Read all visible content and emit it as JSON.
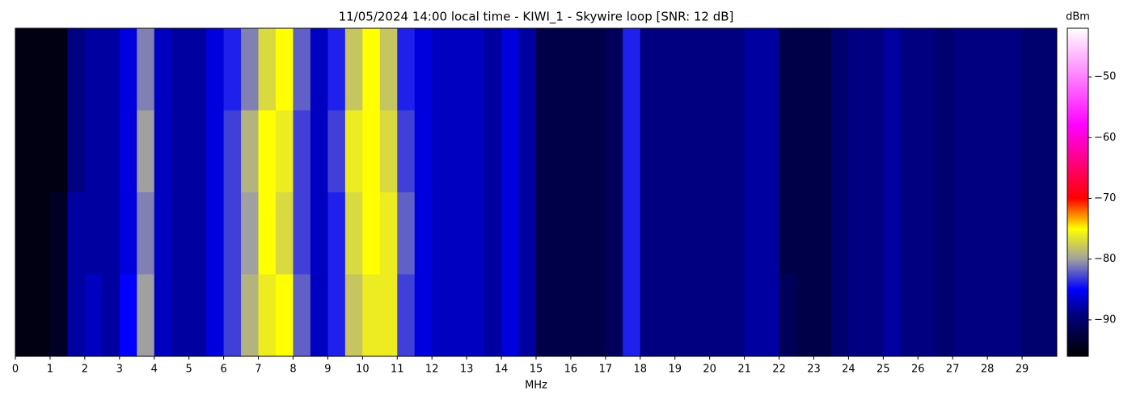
{
  "chart_data": {
    "type": "heatmap",
    "title": "11/05/2024 14:00 local time - KIWI_1 - Skywire loop [SNR: 12 dB]",
    "xlabel": "MHz",
    "colorbar_label": "dBm",
    "xlim": [
      0,
      30
    ],
    "xticks": [
      0,
      1,
      2,
      3,
      4,
      5,
      6,
      7,
      8,
      9,
      10,
      11,
      12,
      13,
      14,
      15,
      16,
      17,
      18,
      19,
      20,
      21,
      22,
      23,
      24,
      25,
      26,
      27,
      28,
      29
    ],
    "clim": [
      -96,
      -42
    ],
    "cticks": [
      {
        "value": -50,
        "label": "−50"
      },
      {
        "value": -60,
        "label": "−60"
      },
      {
        "value": -70,
        "label": "−70"
      },
      {
        "value": -80,
        "label": "−80"
      },
      {
        "value": -90,
        "label": "−90"
      }
    ],
    "colormap": [
      [
        -96,
        "#000000"
      ],
      [
        -89,
        "#000080"
      ],
      [
        -85,
        "#0000ff"
      ],
      [
        -80,
        "#a0a0a0"
      ],
      [
        -75,
        "#ffff00"
      ],
      [
        -70,
        "#ff0000"
      ],
      [
        -58,
        "#ff00ff"
      ],
      [
        -42,
        "#ffffff"
      ]
    ],
    "values": [
      [
        -95,
        -95,
        -95,
        -89,
        -88,
        -88,
        -86,
        -81,
        -87,
        -88,
        -88,
        -86,
        -84,
        -81,
        -77,
        -75,
        -82,
        -87,
        -84,
        -78,
        -75,
        -78,
        -84,
        -86,
        -87,
        -87,
        -87,
        -88,
        -86,
        -88,
        -92,
        -92,
        -92,
        -92,
        -91,
        -84,
        -89,
        -89,
        -89,
        -89,
        -89,
        -89,
        -88,
        -88,
        -92,
        -92,
        -92,
        -90,
        -89,
        -89,
        -88,
        -89,
        -89,
        -90,
        -89,
        -89,
        -89,
        -89,
        -90,
        -90
      ],
      [
        -95,
        -95,
        -95,
        -89,
        -88,
        -88,
        -86,
        -80,
        -87,
        -88,
        -88,
        -86,
        -83,
        -79,
        -75,
        -76,
        -83,
        -87,
        -83,
        -76,
        -75,
        -77,
        -83,
        -86,
        -87,
        -87,
        -87,
        -88,
        -86,
        -88,
        -92,
        -92,
        -92,
        -92,
        -91,
        -84,
        -89,
        -89,
        -89,
        -89,
        -89,
        -89,
        -88,
        -88,
        -92,
        -92,
        -92,
        -90,
        -89,
        -89,
        -88,
        -89,
        -89,
        -90,
        -89,
        -89,
        -89,
        -89,
        -90,
        -90
      ],
      [
        -95,
        -95,
        -94,
        -88,
        -88,
        -88,
        -86,
        -81,
        -87,
        -88,
        -88,
        -86,
        -83,
        -80,
        -75,
        -77,
        -83,
        -87,
        -84,
        -77,
        -75,
        -76,
        -82,
        -86,
        -87,
        -87,
        -87,
        -88,
        -86,
        -88,
        -92,
        -92,
        -92,
        -92,
        -91,
        -84,
        -89,
        -89,
        -89,
        -89,
        -89,
        -89,
        -88,
        -88,
        -92,
        -92,
        -92,
        -90,
        -89,
        -89,
        -88,
        -89,
        -89,
        -90,
        -89,
        -89,
        -89,
        -89,
        -90,
        -90
      ],
      [
        -95,
        -95,
        -94,
        -88,
        -87,
        -88,
        -85,
        -80,
        -87,
        -88,
        -88,
        -86,
        -83,
        -79,
        -76,
        -75,
        -82,
        -87,
        -84,
        -78,
        -76,
        -76,
        -83,
        -86,
        -87,
        -87,
        -87,
        -88,
        -86,
        -88,
        -92,
        -92,
        -92,
        -92,
        -91,
        -84,
        -89,
        -89,
        -89,
        -89,
        -89,
        -89,
        -88,
        -88,
        -91,
        -92,
        -92,
        -90,
        -89,
        -89,
        -88,
        -89,
        -89,
        -90,
        -89,
        -89,
        -89,
        -89,
        -90,
        -90
      ]
    ]
  }
}
